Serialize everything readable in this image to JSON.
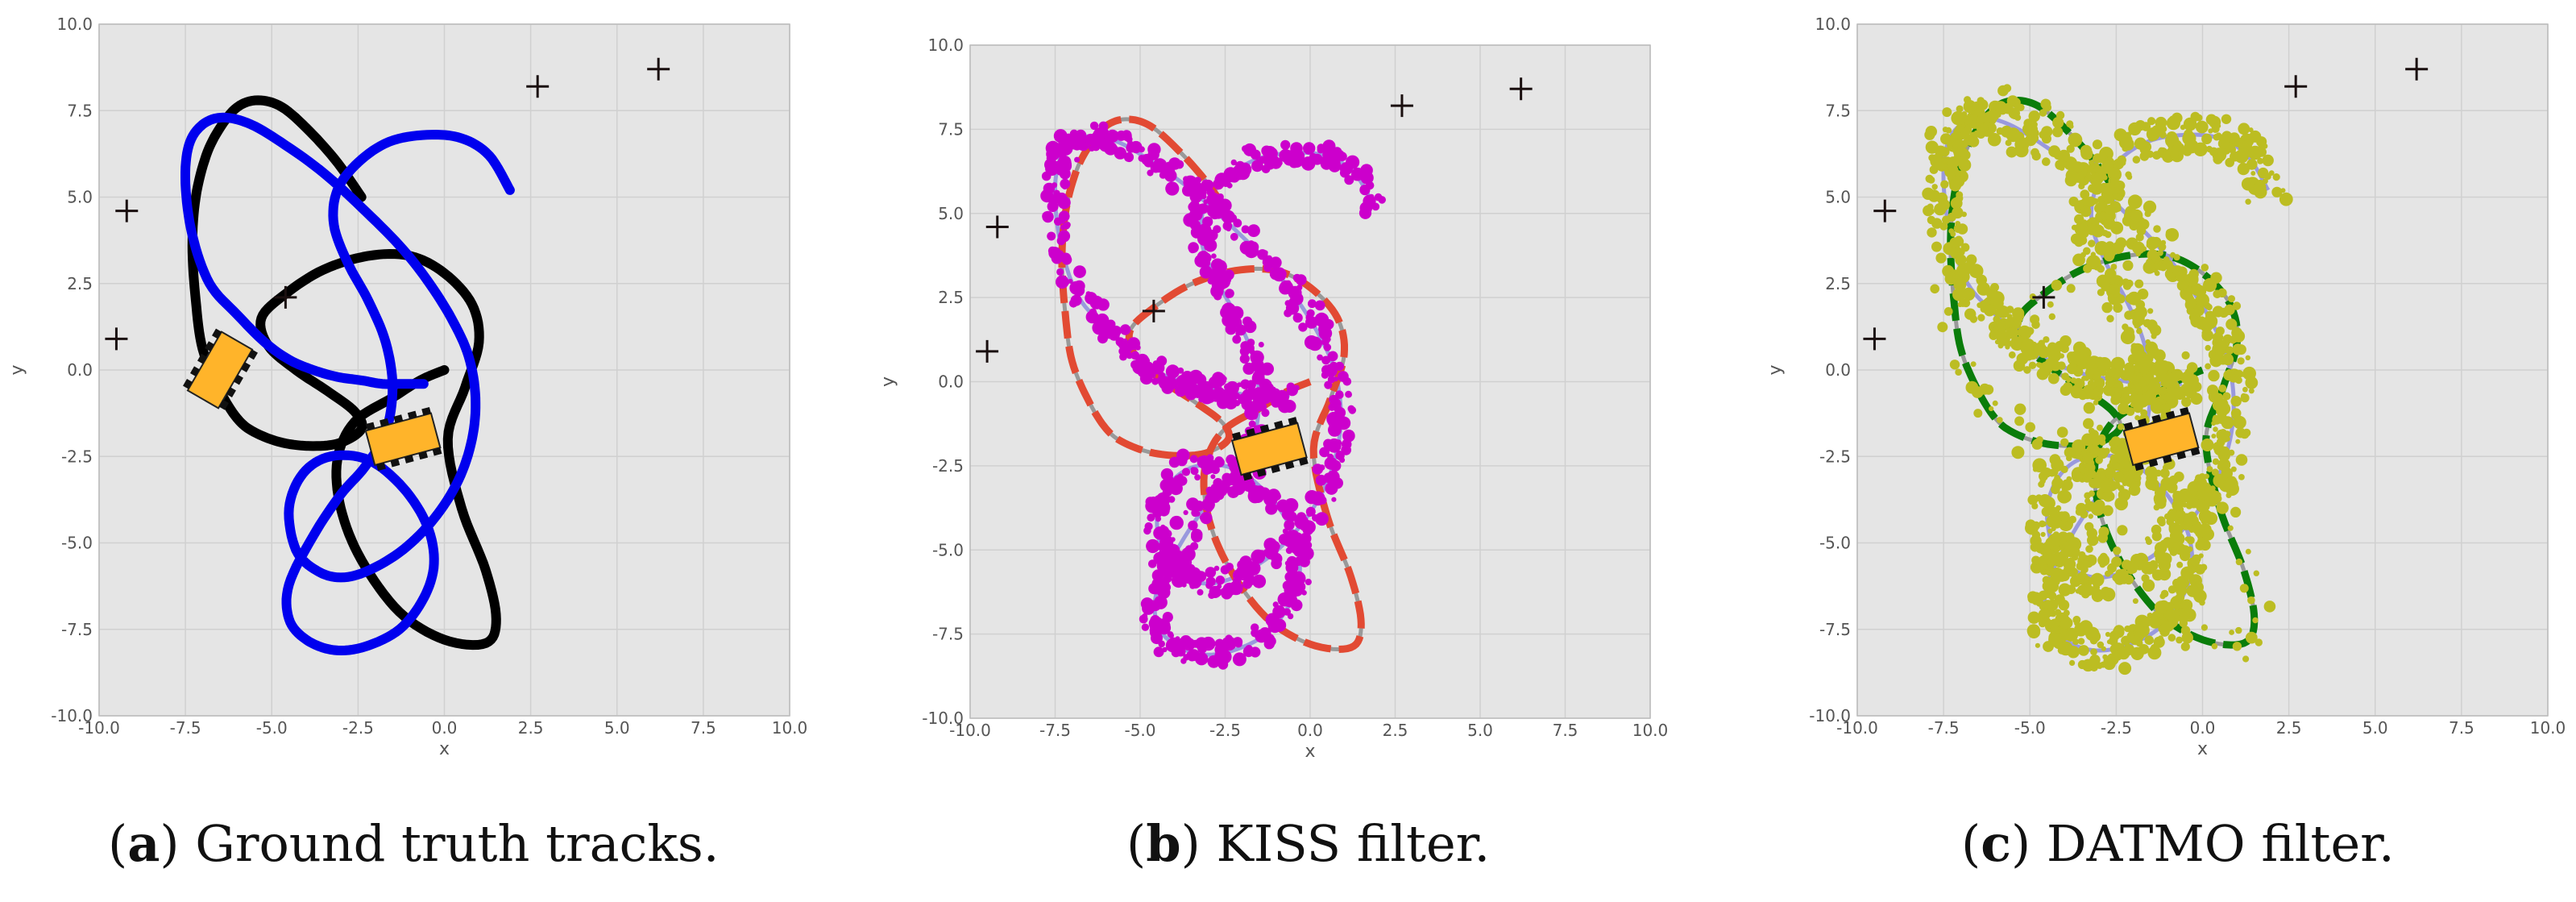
{
  "chart_data": [
    {
      "type": "line",
      "panel": "a",
      "caption_letter": "a",
      "caption_text": "Ground truth tracks.",
      "xlabel": "x",
      "ylabel": "y",
      "xlim": [
        -10,
        10
      ],
      "ylim": [
        -10,
        10
      ],
      "xticks": [
        "-10.0",
        "-7.5",
        "-5.0",
        "-2.5",
        "0.0",
        "2.5",
        "5.0",
        "7.5",
        "10.0"
      ],
      "yticks": [
        "-10.0",
        "-7.5",
        "-5.0",
        "-2.5",
        "0.0",
        "2.5",
        "5.0",
        "7.5",
        "10.0"
      ],
      "grid": true,
      "landmarks": [
        [
          -9.5,
          0.9
        ],
        [
          -9.2,
          4.6
        ],
        [
          -4.6,
          2.1
        ],
        [
          2.7,
          8.2
        ],
        [
          6.2,
          8.7
        ]
      ],
      "vehicles": [
        {
          "x": -6.5,
          "y": 0.0,
          "angle": -60
        },
        {
          "x": -1.2,
          "y": -2.0,
          "angle": -15
        }
      ],
      "series": [
        {
          "color": "#000000",
          "width": 12,
          "x": [
            0.0,
            -0.7,
            -1.5,
            -2.6,
            -3.1,
            -3.0,
            -2.4,
            -1.3,
            0.0,
            1.2,
            1.5,
            1.2,
            0.5,
            0.1,
            0.6,
            1.0,
            0.8,
            0.0,
            -1.0,
            -2.2,
            -3.5,
            -4.6,
            -5.3,
            -5.1,
            -4.3,
            -3.4,
            -2.6,
            -2.4,
            -3.0,
            -3.8,
            -4.7,
            -5.5,
            -6.0,
            -6.5,
            -7.0,
            -7.2,
            -7.3,
            -7.2,
            -6.9,
            -6.5,
            -6.0,
            -5.4,
            -4.7,
            -3.9,
            -3.1,
            -2.4
          ],
          "y": [
            0.0,
            -0.3,
            -0.8,
            -1.5,
            -2.6,
            -4.0,
            -5.5,
            -7.0,
            -7.8,
            -7.9,
            -7.2,
            -5.8,
            -4.0,
            -2.0,
            -0.5,
            0.8,
            1.9,
            2.8,
            3.3,
            3.3,
            2.9,
            2.2,
            1.5,
            0.7,
            0.0,
            -0.6,
            -1.2,
            -1.7,
            -2.1,
            -2.2,
            -2.1,
            -1.8,
            -1.4,
            -0.6,
            0.6,
            2.0,
            3.6,
            5.0,
            6.2,
            7.0,
            7.6,
            7.8,
            7.6,
            6.9,
            6.0,
            5.0
          ]
        },
        {
          "color": "#0000ee",
          "width": 12,
          "x": [
            1.9,
            1.3,
            0.5,
            -0.5,
            -1.6,
            -2.5,
            -3.1,
            -3.2,
            -2.8,
            -2.2,
            -1.7,
            -1.5,
            -1.7,
            -2.3,
            -3.0,
            -3.8,
            -4.5,
            -4.5,
            -4.0,
            -3.2,
            -2.3,
            -1.3,
            -0.6,
            -0.3,
            -0.5,
            -1.2,
            -2.2,
            -3.3,
            -4.1,
            -4.5,
            -4.3,
            -3.7,
            -3.0,
            -2.2,
            -1.2,
            -0.3,
            0.4,
            0.8,
            0.9,
            0.7,
            0.2,
            -0.5,
            -1.3,
            -2.4,
            -3.5,
            -4.6,
            -5.6,
            -6.4,
            -7.0,
            -7.4,
            -7.5,
            -7.3,
            -6.8,
            -6.0,
            -5.2,
            -4.5,
            -3.8,
            -3.1,
            -2.4,
            -1.8,
            -1.2,
            -0.6
          ],
          "y": [
            5.2,
            6.2,
            6.7,
            6.8,
            6.6,
            6.0,
            5.2,
            4.2,
            3.1,
            2.0,
            0.8,
            -0.5,
            -1.8,
            -2.8,
            -3.6,
            -4.8,
            -6.2,
            -7.2,
            -7.8,
            -8.1,
            -8.0,
            -7.5,
            -6.6,
            -5.6,
            -4.5,
            -3.4,
            -2.6,
            -2.5,
            -3.0,
            -4.0,
            -5.2,
            -5.8,
            -6.0,
            -5.8,
            -5.2,
            -4.3,
            -3.2,
            -2.0,
            -0.8,
            0.4,
            1.5,
            2.6,
            3.6,
            4.7,
            5.7,
            6.5,
            7.1,
            7.3,
            7.1,
            6.5,
            5.4,
            3.9,
            2.5,
            1.6,
            0.8,
            0.3,
            0.0,
            -0.2,
            -0.3,
            -0.4,
            -0.4,
            -0.4
          ]
        }
      ]
    },
    {
      "type": "scatter",
      "panel": "b",
      "caption_letter": "b",
      "caption_text": "KISS filter.",
      "xlabel": "x",
      "ylabel": "y",
      "xlim": [
        -10,
        10
      ],
      "ylim": [
        -10,
        10
      ],
      "xticks": [
        "-10.0",
        "-7.5",
        "-5.0",
        "-2.5",
        "0.0",
        "2.5",
        "5.0",
        "7.5",
        "10.0"
      ],
      "yticks": [
        "-10.0",
        "-7.5",
        "-5.0",
        "-2.5",
        "0.0",
        "2.5",
        "5.0",
        "7.5",
        "10.0"
      ],
      "grid": true,
      "landmarks": [
        [
          -9.5,
          0.9
        ],
        [
          -9.2,
          4.6
        ],
        [
          -4.6,
          2.1
        ],
        [
          2.7,
          8.2
        ],
        [
          6.2,
          8.7
        ]
      ],
      "vehicles": [
        {
          "x": -1.2,
          "y": -2.0,
          "angle": -15
        }
      ],
      "track_colors": {
        "ref1": "#999999",
        "ref2": "#9999dd",
        "est1": "#e24a33",
        "est2": "#cc00cc"
      }
    },
    {
      "type": "scatter",
      "panel": "c",
      "caption_letter": "c",
      "caption_text": "DATMO filter.",
      "xlabel": "x",
      "ylabel": "y",
      "xlim": [
        -10,
        10
      ],
      "ylim": [
        -10,
        10
      ],
      "xticks": [
        "-10.0",
        "-7.5",
        "-5.0",
        "-2.5",
        "0.0",
        "2.5",
        "5.0",
        "7.5",
        "10.0"
      ],
      "yticks": [
        "-10.0",
        "-7.5",
        "-5.0",
        "-2.5",
        "0.0",
        "2.5",
        "5.0",
        "7.5",
        "10.0"
      ],
      "grid": true,
      "landmarks": [
        [
          -9.5,
          0.9
        ],
        [
          -9.2,
          4.6
        ],
        [
          -4.6,
          2.1
        ],
        [
          2.7,
          8.2
        ],
        [
          6.2,
          8.7
        ]
      ],
      "vehicles": [
        {
          "x": -1.2,
          "y": -2.0,
          "angle": -15
        }
      ],
      "track_colors": {
        "ref1": "#999999",
        "ref2": "#9999dd",
        "est1": "#0a7d0a",
        "est2": "#bcbd22"
      }
    }
  ]
}
